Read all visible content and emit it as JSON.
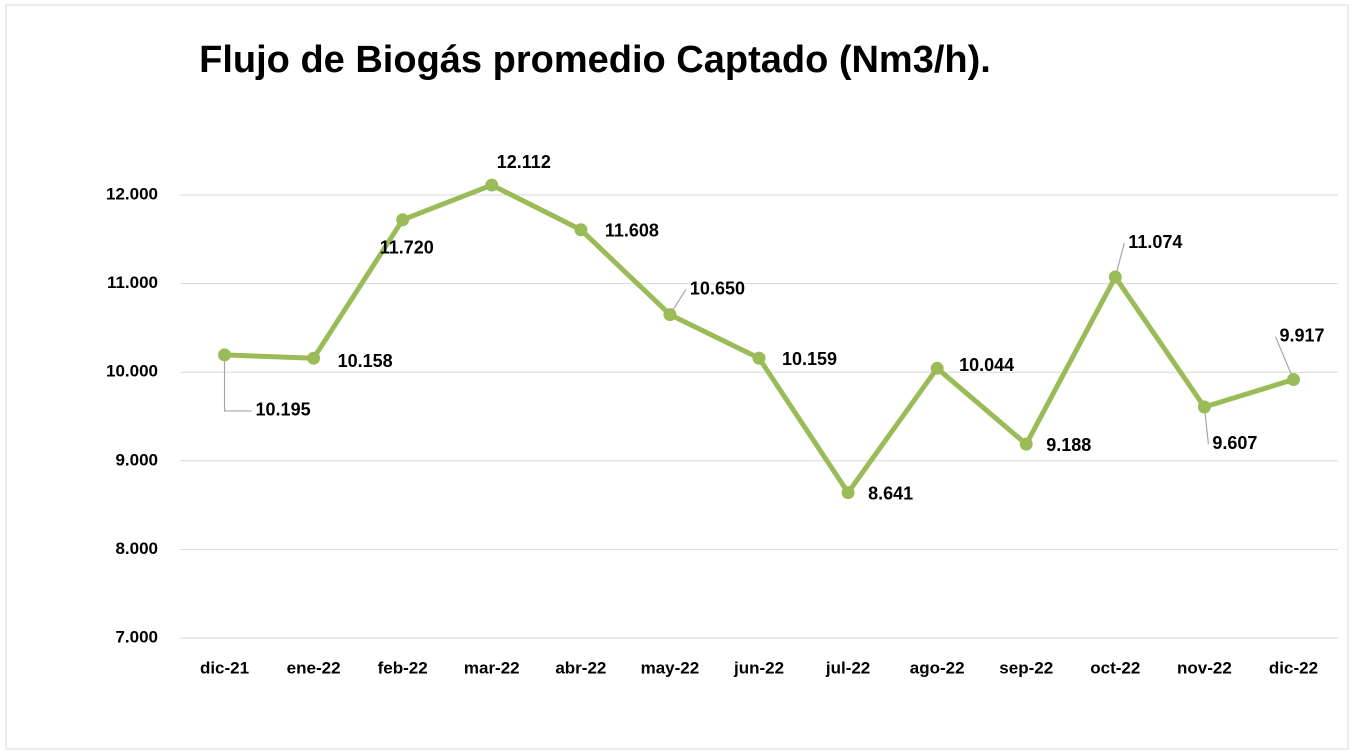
{
  "chart_data": {
    "type": "line",
    "title": "Flujo de Biogás promedio Captado (Nm3/h).",
    "categories": [
      "dic-21",
      "ene-22",
      "feb-22",
      "mar-22",
      "abr-22",
      "may-22",
      "jun-22",
      "jul-22",
      "ago-22",
      "sep-22",
      "oct-22",
      "nov-22",
      "dic-22"
    ],
    "series": [
      {
        "name": "Flujo de Biogás",
        "color": "#9bbb59",
        "values": [
          10195,
          10158,
          11720,
          12112,
          11608,
          10650,
          10159,
          8641,
          10044,
          9188,
          11074,
          9607,
          9917
        ],
        "value_labels": [
          "10.195",
          "10.158",
          "11.720",
          "12.112",
          "11.608",
          "10.650",
          "10.159",
          "8.641",
          "10.044",
          "9.188",
          "11.074",
          "9.607",
          "9.917"
        ]
      }
    ],
    "ylim": [
      7000,
      12000
    ],
    "yticks": [
      {
        "value": 7000,
        "label": "7.000"
      },
      {
        "value": 8000,
        "label": "8.000"
      },
      {
        "value": 9000,
        "label": "9.000"
      },
      {
        "value": 10000,
        "label": "10.000"
      },
      {
        "value": 11000,
        "label": "11.000"
      },
      {
        "value": 12000,
        "label": "12.000"
      }
    ],
    "grid": true,
    "legend": false
  }
}
